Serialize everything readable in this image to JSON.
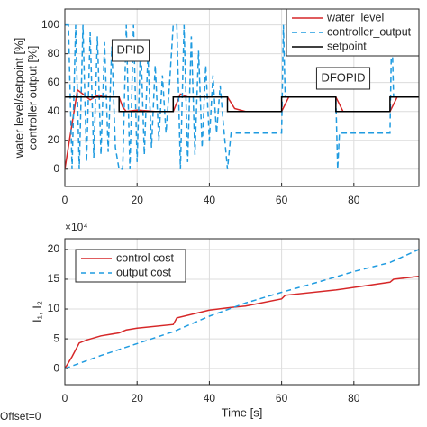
{
  "chart_data": [
    {
      "type": "line",
      "ylabel": [
        "water level/setpoint [%]",
        "controller output [%]"
      ],
      "annotations": [
        "DPID",
        "DFOPID"
      ],
      "xlim": [
        0,
        98
      ],
      "xticks": [
        0,
        20,
        40,
        60,
        80
      ],
      "ylim": [
        -12,
        111
      ],
      "yticks": [
        0,
        20,
        40,
        60,
        80,
        100
      ],
      "grid": true,
      "legend": "upper right",
      "series": [
        {
          "name": "water_level",
          "color": "#d62728",
          "dash": "solid",
          "x": [
            0,
            3.5,
            5,
            7,
            9,
            12,
            15,
            16,
            17,
            20,
            25,
            30,
            32,
            34,
            40,
            45,
            47,
            50,
            60,
            62,
            75,
            77,
            90,
            92,
            98
          ],
          "values": [
            0,
            55,
            52,
            48,
            51,
            50,
            50,
            43,
            40,
            41,
            40,
            40,
            52,
            50,
            50,
            50,
            42,
            40,
            40,
            50,
            50,
            40,
            40,
            50,
            50
          ]
        },
        {
          "name": "controller_output",
          "color": "#1f9be0",
          "dash": "dashed",
          "x": [
            0,
            1,
            2,
            3,
            4,
            5,
            6,
            7,
            8,
            9,
            10,
            11,
            12,
            13,
            14,
            15,
            16,
            17,
            18,
            19,
            20,
            21,
            22,
            23,
            24,
            25,
            26,
            27,
            28,
            29,
            30,
            31,
            32,
            33,
            34,
            35,
            36,
            37,
            38,
            39,
            40,
            41,
            42,
            43,
            44,
            45,
            46,
            60,
            60.5,
            61,
            75,
            75.5,
            76,
            90,
            90.5,
            91,
            98
          ],
          "values": [
            100,
            100,
            0,
            100,
            0,
            100,
            5,
            95,
            8,
            92,
            10,
            88,
            12,
            85,
            15,
            0,
            0,
            100,
            0,
            100,
            5,
            90,
            10,
            80,
            15,
            72,
            20,
            65,
            25,
            60,
            100,
            100,
            0,
            100,
            5,
            92,
            10,
            82,
            15,
            72,
            20,
            65,
            25,
            58,
            28,
            0,
            25,
            25,
            100,
            50,
            50,
            0,
            25,
            25,
            100,
            50,
            50
          ]
        },
        {
          "name": "setpoint",
          "color": "#000000",
          "dash": "solid",
          "x": [
            0,
            15,
            15,
            30,
            30,
            45,
            45,
            60,
            60,
            75,
            75,
            90,
            90,
            98
          ],
          "values": [
            50,
            50,
            40,
            40,
            50,
            50,
            40,
            40,
            50,
            50,
            40,
            40,
            50,
            50
          ]
        }
      ]
    },
    {
      "type": "line",
      "xlabel": "Time [s]",
      "ylabel": [
        "I₁, I₂"
      ],
      "y_multiplier": "×10⁴",
      "xlim": [
        0,
        98
      ],
      "xticks": [
        0,
        20,
        40,
        60,
        80
      ],
      "ylim": [
        -2.7,
        21.8
      ],
      "yticks": [
        0,
        5,
        10,
        15,
        20
      ],
      "grid": true,
      "legend": "upper left",
      "series": [
        {
          "name": "control cost",
          "color": "#d62728",
          "dash": "solid",
          "x": [
            0,
            2,
            4,
            6,
            10,
            15,
            17,
            20,
            30,
            31,
            40,
            45,
            50,
            60,
            61,
            75,
            90,
            91,
            98
          ],
          "values": [
            0,
            2,
            4.3,
            4.8,
            5.5,
            6,
            6.5,
            6.8,
            7.4,
            8.5,
            9.8,
            10.2,
            10.5,
            11.7,
            12.3,
            13.2,
            14.5,
            15,
            15.5
          ]
        },
        {
          "name": "output cost",
          "color": "#1f9be0",
          "dash": "dashed",
          "x": [
            0,
            10,
            20,
            30,
            40,
            50,
            60,
            70,
            80,
            90,
            98
          ],
          "values": [
            0,
            2.2,
            4.2,
            6.2,
            8.8,
            11,
            12.8,
            14.5,
            16.3,
            17.8,
            20
          ]
        }
      ]
    }
  ],
  "footer": "Offset=0"
}
